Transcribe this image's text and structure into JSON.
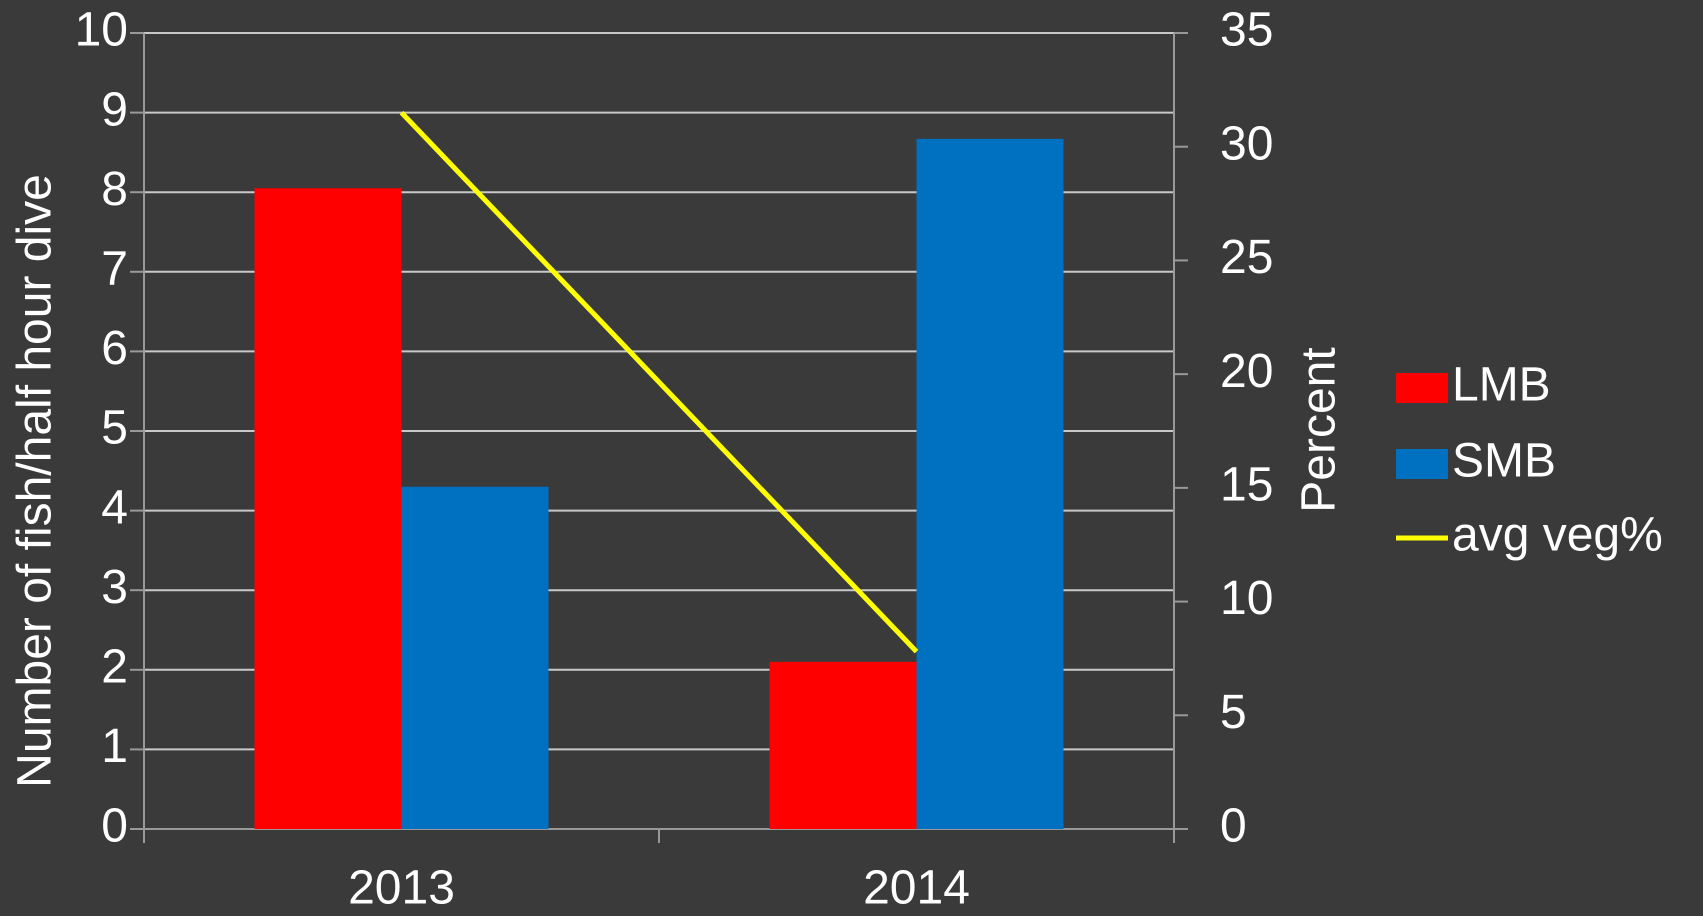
{
  "chart_data": {
    "type": "bar",
    "ylabel": "Number of fish/half hour dive",
    "y2label": "Percent",
    "categories": [
      "2013",
      "2014"
    ],
    "series": [
      {
        "name": "LMB",
        "color": "#ff0000",
        "values": [
          8.05,
          2.1
        ]
      },
      {
        "name": "SMB",
        "color": "#0070c0",
        "values": [
          4.3,
          8.67
        ]
      },
      {
        "name": "avg veg%",
        "type": "line",
        "axis": "y2",
        "color": "#ffff00",
        "values": [
          31.5,
          7.8
        ]
      }
    ],
    "ylim": [
      0,
      10
    ],
    "yticks": [
      0,
      1,
      2,
      3,
      4,
      5,
      6,
      7,
      8,
      9,
      10
    ],
    "y2lim": [
      0,
      35
    ],
    "y2ticks": [
      0,
      5,
      10,
      15,
      20,
      25,
      30,
      35
    ],
    "grid": true,
    "legend": "right"
  }
}
